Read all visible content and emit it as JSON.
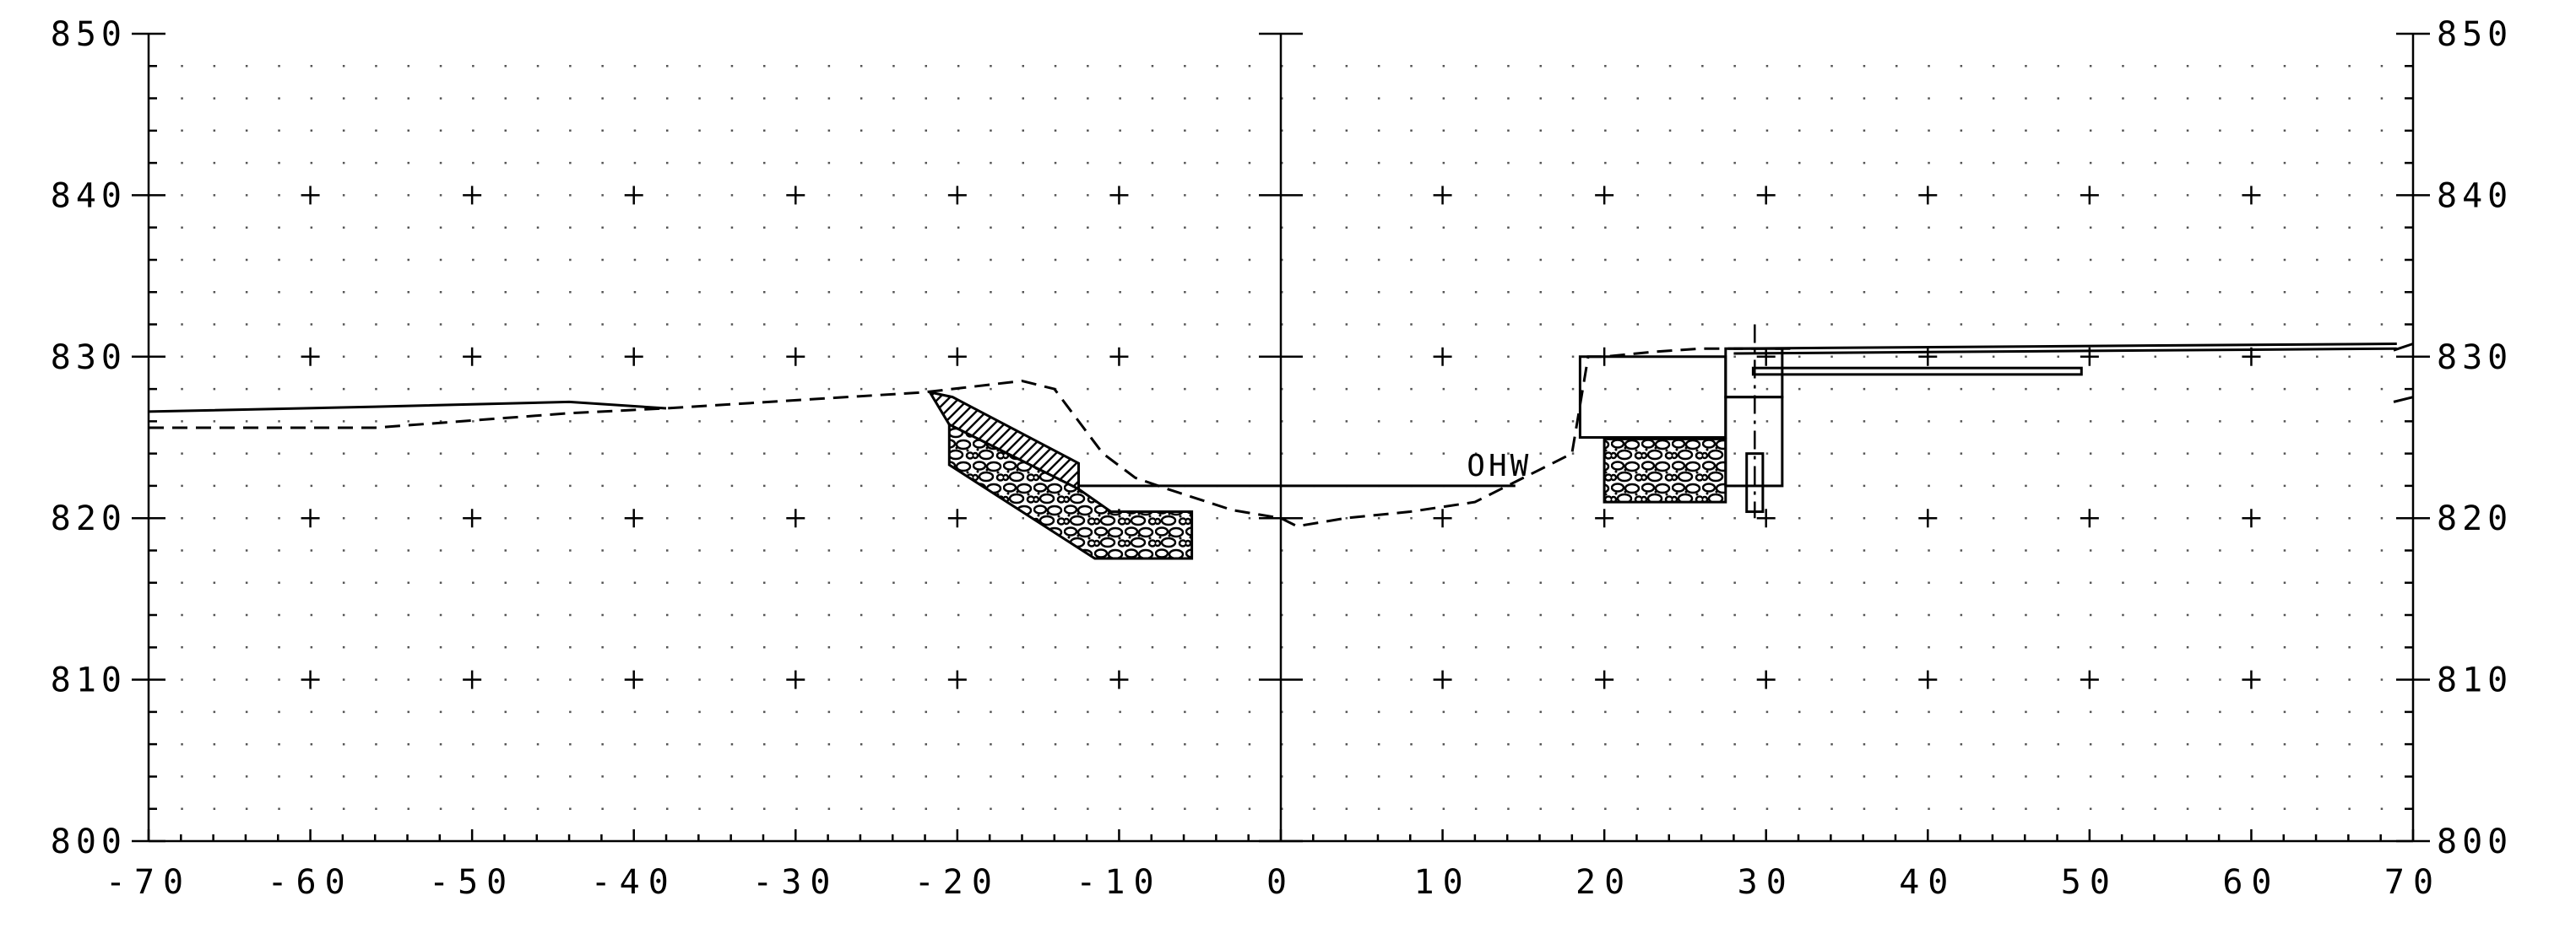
{
  "chart_data": {
    "type": "line",
    "title": "",
    "xlabel": "",
    "ylabel": "",
    "xlim": [
      -70,
      70
    ],
    "ylim": [
      800,
      850
    ],
    "x_ticks": [
      "-70",
      "-60",
      "-50",
      "-40",
      "-30",
      "-20",
      "-10",
      "0",
      "10",
      "20",
      "30",
      "40",
      "50",
      "60",
      "70"
    ],
    "y_ticks_left": [
      "850",
      "840",
      "830",
      "820",
      "810",
      "800"
    ],
    "y_ticks_right": [
      "850",
      "840",
      "830",
      "820",
      "810",
      "800"
    ],
    "grid": "dotted",
    "annotations": [
      {
        "text": "OHW",
        "x": 11.5,
        "y": 822.3
      }
    ],
    "series": [
      {
        "style": "dashed",
        "x": [
          -70,
          -56,
          -44,
          -38,
          -22,
          -16,
          -14,
          -11,
          -9,
          -7,
          -3,
          0,
          1,
          4,
          8,
          12,
          14,
          16,
          18,
          19,
          20,
          23,
          26,
          30,
          32
        ],
        "y": [
          825.6,
          825.6,
          826.5,
          826.8,
          827.8,
          828.5,
          828.0,
          824.0,
          822.5,
          821.8,
          820.5,
          820.0,
          819.5,
          820.0,
          820.4,
          821.0,
          822.0,
          823.0,
          824.0,
          830.0,
          830.0,
          830.3,
          830.5,
          830.5,
          830.5
        ]
      },
      {
        "style": "solid",
        "x": [
          -70,
          -56,
          -44,
          -38
        ],
        "y": [
          826.6,
          826.9,
          827.2,
          826.8
        ]
      },
      {
        "style": "solid",
        "x": [
          -12.5,
          14.5
        ],
        "y": [
          822.0,
          822.0
        ]
      },
      {
        "style": "solid",
        "x": [
          28,
          69
        ],
        "y": [
          830.5,
          830.8
        ]
      },
      {
        "style": "solid",
        "x": [
          28,
          69
        ],
        "y": [
          830.2,
          830.5
        ]
      }
    ]
  }
}
